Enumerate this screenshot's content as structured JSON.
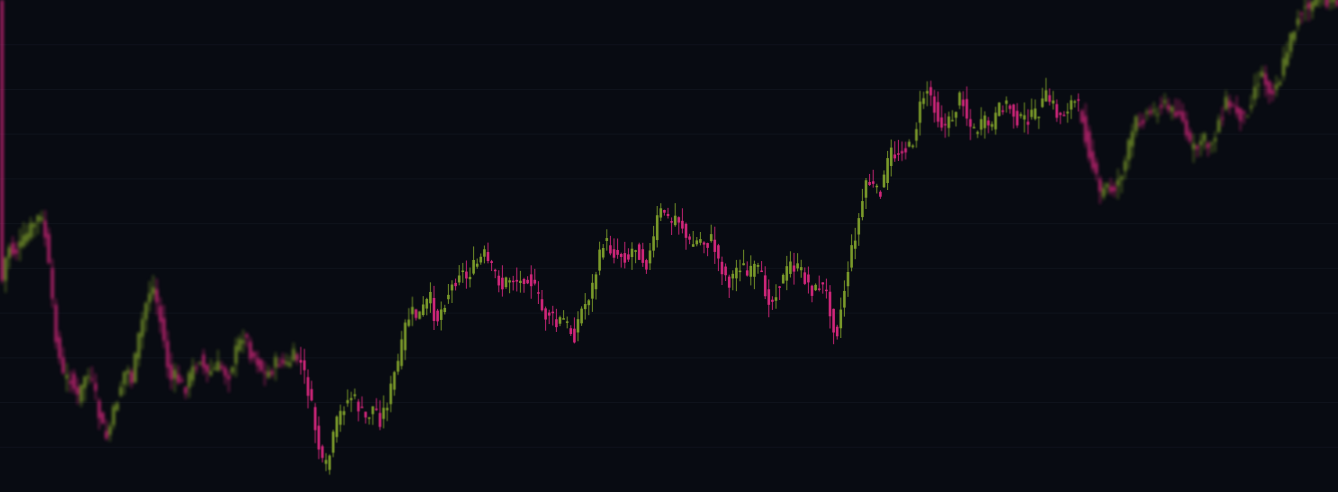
{
  "theme": {
    "background": "#080b12",
    "gridline": "#0f131c",
    "up_color": "#7a9a2a",
    "down_color": "#d0267a"
  },
  "chart_data": {
    "type": "candlestick",
    "xlabel": "",
    "ylabel": "",
    "ylim": [
      0,
      100
    ],
    "grid": true,
    "legend": "none",
    "path": [
      [
        0,
        60
      ],
      [
        8,
        50
      ],
      [
        14,
        52
      ],
      [
        22,
        50
      ],
      [
        30,
        47
      ],
      [
        40,
        44
      ],
      [
        46,
        49
      ],
      [
        52,
        62
      ],
      [
        58,
        72
      ],
      [
        64,
        78
      ],
      [
        70,
        77
      ],
      [
        78,
        82
      ],
      [
        86,
        76
      ],
      [
        94,
        80
      ],
      [
        100,
        86
      ],
      [
        106,
        90
      ],
      [
        112,
        86
      ],
      [
        118,
        81
      ],
      [
        126,
        75
      ],
      [
        132,
        78
      ],
      [
        138,
        70
      ],
      [
        146,
        62
      ],
      [
        152,
        58
      ],
      [
        158,
        63
      ],
      [
        164,
        70
      ],
      [
        170,
        78
      ],
      [
        176,
        77
      ],
      [
        184,
        80
      ],
      [
        192,
        76
      ],
      [
        200,
        73
      ],
      [
        206,
        77
      ],
      [
        212,
        76
      ],
      [
        220,
        75
      ],
      [
        228,
        77
      ],
      [
        236,
        72
      ],
      [
        244,
        68
      ],
      [
        250,
        72
      ],
      [
        258,
        74
      ],
      [
        264,
        77
      ],
      [
        270,
        76
      ],
      [
        278,
        74
      ],
      [
        286,
        75
      ],
      [
        294,
        73
      ],
      [
        300,
        74
      ],
      [
        306,
        78
      ],
      [
        312,
        84
      ],
      [
        318,
        91
      ],
      [
        324,
        97
      ],
      [
        330,
        93
      ],
      [
        336,
        87
      ],
      [
        344,
        83
      ],
      [
        352,
        81
      ],
      [
        360,
        84
      ],
      [
        366,
        86
      ],
      [
        374,
        83
      ],
      [
        380,
        86
      ],
      [
        388,
        82
      ],
      [
        394,
        77
      ],
      [
        400,
        73
      ],
      [
        406,
        66
      ],
      [
        412,
        64
      ],
      [
        418,
        65
      ],
      [
        424,
        63
      ],
      [
        430,
        61
      ],
      [
        436,
        66
      ],
      [
        442,
        63
      ],
      [
        448,
        60
      ],
      [
        454,
        58
      ],
      [
        460,
        55
      ],
      [
        466,
        57
      ],
      [
        472,
        55
      ],
      [
        478,
        54
      ],
      [
        484,
        52
      ],
      [
        490,
        55
      ],
      [
        496,
        56
      ],
      [
        502,
        59
      ],
      [
        508,
        57
      ],
      [
        514,
        57
      ],
      [
        520,
        58
      ],
      [
        526,
        56
      ],
      [
        532,
        58
      ],
      [
        538,
        61
      ],
      [
        544,
        65
      ],
      [
        550,
        64
      ],
      [
        556,
        67
      ],
      [
        562,
        65
      ],
      [
        568,
        67
      ],
      [
        574,
        69
      ],
      [
        580,
        64
      ],
      [
        586,
        62
      ],
      [
        592,
        59
      ],
      [
        598,
        54
      ],
      [
        604,
        49
      ],
      [
        610,
        51
      ],
      [
        616,
        52
      ],
      [
        622,
        52
      ],
      [
        628,
        53
      ],
      [
        634,
        50
      ],
      [
        640,
        52
      ],
      [
        646,
        54
      ],
      [
        652,
        51
      ],
      [
        658,
        44
      ],
      [
        664,
        43
      ],
      [
        670,
        46
      ],
      [
        676,
        44
      ],
      [
        682,
        46
      ],
      [
        688,
        50
      ],
      [
        694,
        50
      ],
      [
        700,
        49
      ],
      [
        706,
        50
      ],
      [
        712,
        49
      ],
      [
        718,
        53
      ],
      [
        724,
        56
      ],
      [
        730,
        58
      ],
      [
        736,
        55
      ],
      [
        742,
        54
      ],
      [
        748,
        57
      ],
      [
        754,
        55
      ],
      [
        760,
        56
      ],
      [
        766,
        60
      ],
      [
        772,
        62
      ],
      [
        778,
        58
      ],
      [
        784,
        57
      ],
      [
        790,
        54
      ],
      [
        796,
        55
      ],
      [
        802,
        56
      ],
      [
        808,
        58
      ],
      [
        814,
        60
      ],
      [
        820,
        58
      ],
      [
        826,
        60
      ],
      [
        832,
        65
      ],
      [
        836,
        69
      ],
      [
        842,
        62
      ],
      [
        848,
        55
      ],
      [
        854,
        49
      ],
      [
        860,
        44
      ],
      [
        866,
        37
      ],
      [
        872,
        38
      ],
      [
        878,
        40
      ],
      [
        884,
        37
      ],
      [
        890,
        31
      ],
      [
        896,
        32
      ],
      [
        902,
        30
      ],
      [
        908,
        31
      ],
      [
        914,
        28
      ],
      [
        920,
        22
      ],
      [
        926,
        18
      ],
      [
        932,
        20
      ],
      [
        938,
        24
      ],
      [
        944,
        26
      ],
      [
        950,
        25
      ],
      [
        956,
        22
      ],
      [
        962,
        19
      ],
      [
        968,
        25
      ],
      [
        974,
        27
      ],
      [
        980,
        26
      ],
      [
        986,
        25
      ],
      [
        992,
        26
      ],
      [
        998,
        23
      ],
      [
        1004,
        21
      ],
      [
        1010,
        22
      ],
      [
        1016,
        24
      ],
      [
        1022,
        25
      ],
      [
        1028,
        24
      ],
      [
        1034,
        24
      ],
      [
        1040,
        22
      ],
      [
        1046,
        20
      ],
      [
        1052,
        21
      ],
      [
        1058,
        24
      ],
      [
        1064,
        23
      ],
      [
        1070,
        21
      ],
      [
        1076,
        21
      ],
      [
        1082,
        24
      ],
      [
        1088,
        30
      ],
      [
        1094,
        35
      ],
      [
        1100,
        40
      ],
      [
        1106,
        38
      ],
      [
        1112,
        39
      ],
      [
        1118,
        37
      ],
      [
        1124,
        34
      ],
      [
        1130,
        29
      ],
      [
        1136,
        25
      ],
      [
        1142,
        24
      ],
      [
        1148,
        23
      ],
      [
        1154,
        23
      ],
      [
        1160,
        21
      ],
      [
        1166,
        22
      ],
      [
        1172,
        23
      ],
      [
        1178,
        22
      ],
      [
        1184,
        26
      ],
      [
        1190,
        30
      ],
      [
        1196,
        31
      ],
      [
        1202,
        28
      ],
      [
        1208,
        30
      ],
      [
        1214,
        28
      ],
      [
        1220,
        24
      ],
      [
        1226,
        21
      ],
      [
        1232,
        22
      ],
      [
        1238,
        23
      ],
      [
        1244,
        24
      ],
      [
        1250,
        21
      ],
      [
        1256,
        17
      ],
      [
        1262,
        15
      ],
      [
        1268,
        18
      ],
      [
        1274,
        18
      ],
      [
        1280,
        16
      ],
      [
        1286,
        11
      ],
      [
        1292,
        7
      ],
      [
        1298,
        3
      ],
      [
        1304,
        1
      ],
      [
        1310,
        2
      ],
      [
        1316,
        0
      ],
      [
        1322,
        0
      ],
      [
        1330,
        0
      ],
      [
        1338,
        0
      ]
    ]
  }
}
